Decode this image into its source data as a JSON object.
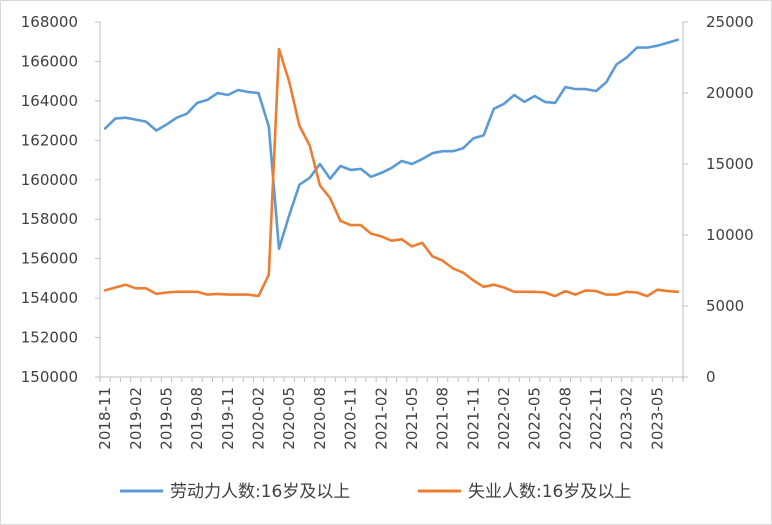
{
  "chart_data": {
    "type": "line",
    "x": [
      "2018-11",
      "2018-12",
      "2019-01",
      "2019-02",
      "2019-03",
      "2019-04",
      "2019-05",
      "2019-06",
      "2019-07",
      "2019-08",
      "2019-09",
      "2019-10",
      "2019-11",
      "2019-12",
      "2020-01",
      "2020-02",
      "2020-03",
      "2020-04",
      "2020-05",
      "2020-06",
      "2020-07",
      "2020-08",
      "2020-09",
      "2020-10",
      "2020-11",
      "2020-12",
      "2021-01",
      "2021-02",
      "2021-03",
      "2021-04",
      "2021-05",
      "2021-06",
      "2021-07",
      "2021-08",
      "2021-09",
      "2021-10",
      "2021-11",
      "2021-12",
      "2022-01",
      "2022-02",
      "2022-03",
      "2022-04",
      "2022-05",
      "2022-06",
      "2022-07",
      "2022-08",
      "2022-09",
      "2022-10",
      "2022-11",
      "2022-12",
      "2023-01",
      "2023-02",
      "2023-03",
      "2023-04",
      "2023-05",
      "2023-06",
      "2023-07"
    ],
    "x_tick_labels": [
      "2018-11",
      "2019-02",
      "2019-05",
      "2019-08",
      "2019-11",
      "2020-02",
      "2020-05",
      "2020-08",
      "2020-11",
      "2021-02",
      "2021-05",
      "2021-08",
      "2021-11",
      "2022-02",
      "2022-05",
      "2022-08",
      "2022-11",
      "2023-02",
      "2023-05"
    ],
    "series": [
      {
        "name": "劳动力人数:16岁及以上",
        "axis": "left",
        "color": "#5b9bd5",
        "values": [
          162600,
          163100,
          163150,
          163050,
          162950,
          162500,
          162800,
          163150,
          163350,
          163900,
          164050,
          164400,
          164300,
          164550,
          164450,
          164400,
          162700,
          156500,
          158200,
          159750,
          160100,
          160800,
          160050,
          160700,
          160500,
          160550,
          160150,
          160350,
          160600,
          160950,
          160800,
          161050,
          161350,
          161450,
          161450,
          161600,
          162100,
          162250,
          163600,
          163850,
          164300,
          163950,
          164250,
          163950,
          163900,
          164700,
          164600,
          164600,
          164500,
          164950,
          165850,
          166200,
          166700,
          166700,
          166800,
          166950,
          167100
        ]
      },
      {
        "name": "失业人数:16岁及以上",
        "axis": "right",
        "color": "#ed7d31",
        "values": [
          6100,
          6300,
          6500,
          6250,
          6250,
          5850,
          5950,
          6000,
          6000,
          6000,
          5800,
          5850,
          5800,
          5800,
          5800,
          5700,
          7200,
          23100,
          20800,
          17700,
          16300,
          13500,
          12600,
          11000,
          10700,
          10700,
          10100,
          9900,
          9600,
          9700,
          9200,
          9450,
          8500,
          8200,
          7650,
          7350,
          6800,
          6350,
          6500,
          6300,
          6000,
          6000,
          6000,
          5950,
          5700,
          6050,
          5800,
          6100,
          6050,
          5800,
          5800,
          6000,
          5950,
          5700,
          6150,
          6050,
          6000
        ]
      }
    ],
    "y_left": {
      "min": 150000,
      "max": 168000,
      "step": 2000
    },
    "y_right": {
      "min": 0,
      "max": 25000,
      "step": 5000
    },
    "legend": {
      "position": "bottom"
    }
  }
}
